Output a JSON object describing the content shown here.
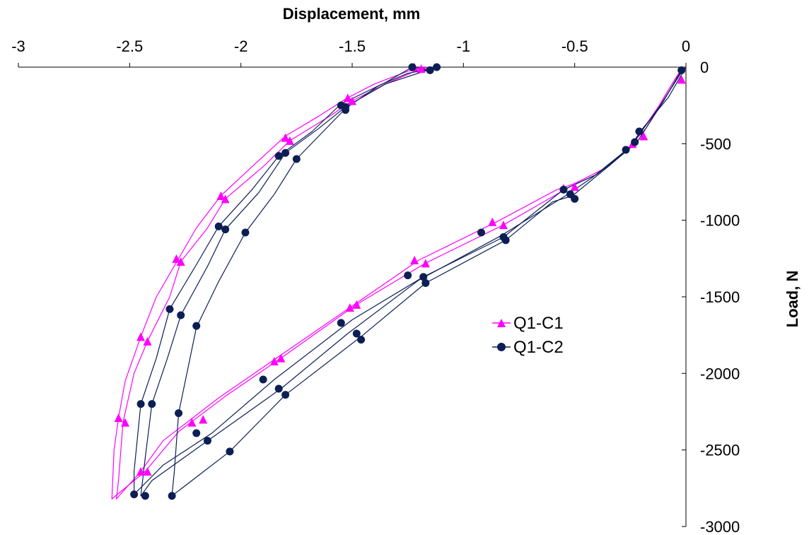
{
  "chart_data": {
    "type": "line",
    "title": "",
    "xlabel": "Displacement, mm",
    "ylabel": "Load, N",
    "xlim": [
      -3,
      0
    ],
    "ylim": [
      -3000,
      0
    ],
    "x_ticks": [
      "-3",
      "-2.5",
      "-2",
      "-1.5",
      "-1",
      "-0.5",
      "0"
    ],
    "y_ticks": [
      "0",
      "-500",
      "-1000",
      "-1500",
      "-2000",
      "-2500",
      "-3000"
    ],
    "grid": false,
    "legend_position": "center-right",
    "series": [
      {
        "name": "Q1-C1",
        "color": "#ff00ff",
        "marker": "triangle",
        "loops": [
          [
            [
              0,
              0
            ],
            [
              -0.05,
              -80
            ],
            [
              -0.12,
              -250
            ],
            [
              -0.2,
              -420
            ],
            [
              -0.25,
              -520
            ],
            [
              -0.35,
              -650
            ],
            [
              -0.5,
              -760
            ],
            [
              -0.58,
              -800
            ],
            [
              -0.85,
              -1010
            ],
            [
              -1.2,
              -1260
            ],
            [
              -1.5,
              -1560
            ],
            [
              -1.85,
              -1910
            ],
            [
              -2.1,
              -2160
            ],
            [
              -2.35,
              -2440
            ],
            [
              -2.45,
              -2640
            ],
            [
              -2.56,
              -2820
            ],
            [
              -2.55,
              -2700
            ],
            [
              -2.53,
              -2320
            ],
            [
              -2.48,
              -2000
            ],
            [
              -2.42,
              -1790
            ],
            [
              -2.32,
              -1500
            ],
            [
              -2.27,
              -1270
            ],
            [
              -2.15,
              -1050
            ],
            [
              -2.07,
              -860
            ],
            [
              -1.9,
              -650
            ],
            [
              -1.78,
              -480
            ],
            [
              -1.6,
              -320
            ],
            [
              -1.5,
              -220
            ],
            [
              -1.35,
              -110
            ],
            [
              -1.19,
              -10
            ],
            [
              -1.12,
              0
            ]
          ],
          [
            [
              -0.02,
              -10
            ],
            [
              -0.1,
              -200
            ],
            [
              -0.18,
              -400
            ],
            [
              -0.28,
              -560
            ],
            [
              -0.4,
              -700
            ],
            [
              -0.52,
              -780
            ],
            [
              -0.82,
              -1030
            ],
            [
              -1.17,
              -1280
            ],
            [
              -1.48,
              -1550
            ],
            [
              -1.82,
              -1900
            ],
            [
              -2.07,
              -2150
            ],
            [
              -2.28,
              -2380
            ],
            [
              -2.43,
              -2640
            ],
            [
              -2.58,
              -2820
            ],
            [
              -2.57,
              -2500
            ],
            [
              -2.55,
              -2290
            ],
            [
              -2.52,
              -2050
            ],
            [
              -2.45,
              -1760
            ],
            [
              -2.38,
              -1500
            ],
            [
              -2.28,
              -1250
            ],
            [
              -2.2,
              -1050
            ],
            [
              -2.09,
              -840
            ],
            [
              -1.95,
              -650
            ],
            [
              -1.8,
              -450
            ],
            [
              -1.65,
              -320
            ],
            [
              -1.52,
              -200
            ],
            [
              -1.4,
              -110
            ],
            [
              -1.22,
              -10
            ],
            [
              -1.16,
              0
            ]
          ]
        ],
        "marker_points": [
          [
            -0.02,
            -80
          ],
          [
            -0.19,
            -450
          ],
          [
            -0.24,
            -500
          ],
          [
            -0.5,
            -780
          ],
          [
            -0.55,
            -790
          ],
          [
            -0.82,
            -1030
          ],
          [
            -0.87,
            -1010
          ],
          [
            -1.17,
            -1280
          ],
          [
            -1.22,
            -1260
          ],
          [
            -1.48,
            -1550
          ],
          [
            -1.51,
            -1570
          ],
          [
            -1.82,
            -1900
          ],
          [
            -1.85,
            -1920
          ],
          [
            -2.17,
            -2300
          ],
          [
            -2.22,
            -2320
          ],
          [
            -2.42,
            -2640
          ],
          [
            -2.45,
            -2640
          ],
          [
            -2.52,
            -2320
          ],
          [
            -2.55,
            -2290
          ],
          [
            -2.42,
            -1790
          ],
          [
            -2.45,
            -1760
          ],
          [
            -2.27,
            -1270
          ],
          [
            -2.29,
            -1250
          ],
          [
            -2.07,
            -860
          ],
          [
            -2.09,
            -840
          ],
          [
            -1.78,
            -480
          ],
          [
            -1.8,
            -460
          ],
          [
            -1.5,
            -220
          ],
          [
            -1.52,
            -200
          ],
          [
            -1.19,
            -10
          ],
          [
            -1.22,
            0
          ]
        ]
      },
      {
        "name": "Q1-C2",
        "color": "#0c1f55",
        "marker": "circle",
        "loops": [
          [
            [
              0,
              0
            ],
            [
              -0.08,
              -200
            ],
            [
              -0.2,
              -410
            ],
            [
              -0.26,
              -540
            ],
            [
              -0.4,
              -700
            ],
            [
              -0.55,
              -800
            ],
            [
              -0.82,
              -1110
            ],
            [
              -1.18,
              -1370
            ],
            [
              -1.5,
              -1650
            ],
            [
              -1.85,
              -2040
            ],
            [
              -2.13,
              -2390
            ],
            [
              -2.35,
              -2600
            ],
            [
              -2.48,
              -2790
            ],
            [
              -2.48,
              -2640
            ],
            [
              -2.45,
              -2200
            ],
            [
              -2.38,
              -1900
            ],
            [
              -2.32,
              -1580
            ],
            [
              -2.2,
              -1290
            ],
            [
              -2.1,
              -1040
            ],
            [
              -1.95,
              -800
            ],
            [
              -1.83,
              -580
            ],
            [
              -1.68,
              -420
            ],
            [
              -1.55,
              -240
            ],
            [
              -1.35,
              -100
            ],
            [
              -1.23,
              0
            ],
            [
              -1.15,
              -20
            ]
          ],
          [
            [
              -0.02,
              -20
            ],
            [
              -0.1,
              -220
            ],
            [
              -0.22,
              -490
            ],
            [
              -0.35,
              -650
            ],
            [
              -0.51,
              -840
            ],
            [
              -0.6,
              -880
            ],
            [
              -0.81,
              -1130
            ],
            [
              -1.17,
              -1410
            ],
            [
              -1.46,
              -1760
            ],
            [
              -1.8,
              -2140
            ],
            [
              -2.05,
              -2510
            ],
            [
              -2.31,
              -2800
            ],
            [
              -2.3,
              -2650
            ],
            [
              -2.28,
              -2260
            ],
            [
              -2.2,
              -1700
            ],
            [
              -2.1,
              -1400
            ],
            [
              -1.98,
              -1080
            ],
            [
              -1.85,
              -830
            ],
            [
              -1.75,
              -600
            ],
            [
              -1.65,
              -450
            ],
            [
              -1.53,
              -270
            ],
            [
              -1.38,
              -120
            ],
            [
              -1.25,
              -40
            ],
            [
              -1.1,
              0
            ]
          ],
          [
            [
              -0.01,
              -10
            ],
            [
              -0.12,
              -260
            ],
            [
              -0.25,
              -520
            ],
            [
              -0.42,
              -720
            ],
            [
              -0.53,
              -830
            ],
            [
              -0.83,
              -1100
            ],
            [
              -1.2,
              -1390
            ],
            [
              -1.52,
              -1740
            ],
            [
              -1.82,
              -2100
            ],
            [
              -2.15,
              -2440
            ],
            [
              -2.4,
              -2700
            ],
            [
              -2.45,
              -2800
            ],
            [
              -2.43,
              -2550
            ],
            [
              -2.4,
              -2200
            ],
            [
              -2.33,
              -1900
            ],
            [
              -2.27,
              -1620
            ],
            [
              -2.15,
              -1300
            ],
            [
              -2.07,
              -1060
            ],
            [
              -1.92,
              -820
            ],
            [
              -1.8,
              -560
            ],
            [
              -1.65,
              -400
            ],
            [
              -1.53,
              -260
            ],
            [
              -1.35,
              -110
            ],
            [
              -1.12,
              0
            ]
          ]
        ],
        "marker_points": [
          [
            -0.02,
            -20
          ],
          [
            -0.21,
            -420
          ],
          [
            -0.23,
            -490
          ],
          [
            -0.27,
            -540
          ],
          [
            -0.5,
            -860
          ],
          [
            -0.52,
            -830
          ],
          [
            -0.55,
            -800
          ],
          [
            -0.81,
            -1130
          ],
          [
            -0.82,
            -1110
          ],
          [
            -0.92,
            -1080
          ],
          [
            -1.17,
            -1410
          ],
          [
            -1.18,
            -1370
          ],
          [
            -1.25,
            -1360
          ],
          [
            -1.46,
            -1780
          ],
          [
            -1.48,
            -1740
          ],
          [
            -1.55,
            -1670
          ],
          [
            -1.8,
            -2140
          ],
          [
            -1.83,
            -2100
          ],
          [
            -1.9,
            -2040
          ],
          [
            -2.05,
            -2510
          ],
          [
            -2.15,
            -2440
          ],
          [
            -2.2,
            -2390
          ],
          [
            -2.31,
            -2800
          ],
          [
            -2.43,
            -2800
          ],
          [
            -2.48,
            -2790
          ],
          [
            -2.28,
            -2260
          ],
          [
            -2.4,
            -2200
          ],
          [
            -2.45,
            -2200
          ],
          [
            -2.2,
            -1690
          ],
          [
            -2.27,
            -1620
          ],
          [
            -2.32,
            -1580
          ],
          [
            -1.98,
            -1080
          ],
          [
            -2.07,
            -1060
          ],
          [
            -2.1,
            -1040
          ],
          [
            -1.75,
            -600
          ],
          [
            -1.8,
            -560
          ],
          [
            -1.83,
            -580
          ],
          [
            -1.53,
            -280
          ],
          [
            -1.55,
            -250
          ],
          [
            -1.53,
            -260
          ],
          [
            -1.12,
            0
          ],
          [
            -1.15,
            -20
          ],
          [
            -1.23,
            0
          ]
        ]
      }
    ]
  }
}
